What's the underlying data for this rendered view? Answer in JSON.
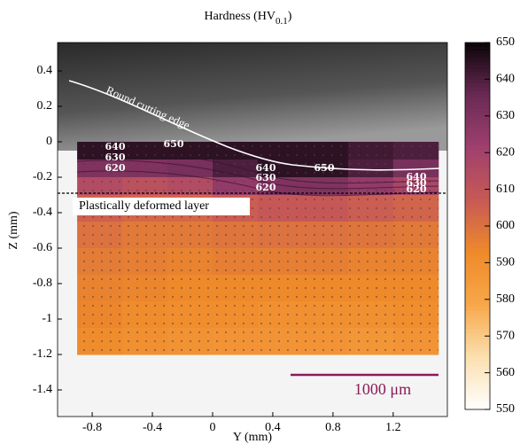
{
  "chart_data": {
    "type": "heatmap",
    "title": "Hardness (HV",
    "title_sub": "0.1",
    "title_end": ")",
    "xlabel": "Y (mm)",
    "ylabel": "Z (mm)",
    "xlim": [
      -1.03,
      1.56
    ],
    "ylim": [
      -1.55,
      0.56
    ],
    "xticks": [
      -0.8,
      -0.4,
      0,
      0.4,
      0.8,
      1.2
    ],
    "yticks": [
      0.4,
      0.2,
      0,
      -0.2,
      -0.4,
      -0.6,
      -0.8,
      -1,
      -1.2,
      -1.4
    ],
    "x": [
      -0.9,
      -0.6,
      -0.3,
      0,
      0.3,
      0.6,
      0.9,
      1.2,
      1.5
    ],
    "y": [
      0,
      -0.1,
      -0.2,
      -0.3,
      -0.45,
      -0.6,
      -0.75,
      -0.9,
      -1.05,
      -1.2
    ],
    "values": [
      [
        645,
        645,
        645,
        645,
        645,
        645,
        642,
        640
      ],
      [
        630,
        630,
        632,
        640,
        645,
        645,
        640,
        632
      ],
      [
        615,
        612,
        615,
        625,
        630,
        630,
        625,
        618
      ],
      [
        605,
        603,
        603,
        606,
        608,
        608,
        606,
        604
      ],
      [
        600,
        598,
        598,
        599,
        600,
        600,
        599,
        598
      ],
      [
        597,
        596,
        595,
        596,
        596,
        596,
        595,
        595
      ],
      [
        595,
        594,
        593,
        593,
        593,
        593,
        593,
        593
      ],
      [
        594,
        592,
        591,
        591,
        590,
        590,
        590,
        591
      ],
      [
        592,
        590,
        589,
        588,
        588,
        588,
        587,
        588
      ]
    ],
    "colorbar_lim": [
      550,
      650
    ],
    "colorbar_ticks": [
      550,
      560,
      570,
      580,
      590,
      600,
      610,
      620,
      630,
      640,
      650
    ],
    "colormap": [
      "#ffffff",
      "#fbe0b0",
      "#f7a84a",
      "#ef8a2a",
      "#c75a55",
      "#a0406e",
      "#6a2a55",
      "#0a0508"
    ],
    "contour_labels": [
      640,
      630,
      620,
      650,
      640,
      630,
      620,
      650,
      640,
      630,
      620
    ],
    "edge_label": "Round cutting edge",
    "layer_label": "Plastically deformed layer",
    "scale_label": "1000 μm"
  }
}
